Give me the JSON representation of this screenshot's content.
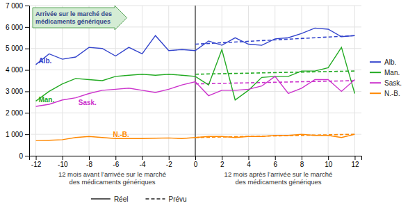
{
  "chart_data": {
    "type": "line",
    "x": [
      -12,
      -11,
      -10,
      -9,
      -8,
      -7,
      -6,
      -5,
      -4,
      -3,
      -2,
      -1,
      0,
      1,
      2,
      3,
      4,
      5,
      6,
      7,
      8,
      9,
      10,
      11,
      12
    ],
    "xlim": [
      -12.5,
      12.5
    ],
    "xticks": [
      -12,
      -10,
      -8,
      -6,
      -4,
      -2,
      0,
      2,
      4,
      6,
      8,
      10,
      12
    ],
    "ylim": [
      0,
      7000
    ],
    "yticks": [
      0,
      {
        "value": 1000,
        "label": "1 000"
      },
      {
        "value": 2000,
        "label": "2 000"
      },
      {
        "value": 3000,
        "label": "3 000"
      },
      {
        "value": 4000,
        "label": "4 000"
      },
      {
        "value": 5000,
        "label": "5 000"
      },
      {
        "value": 6000,
        "label": "6 000"
      },
      {
        "value": 7000,
        "label": "7 000"
      }
    ],
    "grid": true,
    "series": [
      {
        "name": "Alb.",
        "color": "#3344CC",
        "line_style": "solid",
        "values": [
          4250,
          4750,
          4500,
          4600,
          5050,
          5000,
          4650,
          5050,
          4750,
          5600,
          4900,
          4950,
          4900,
          5350,
          5150,
          5500,
          5200,
          5150,
          5450,
          5500,
          5700,
          5950,
          5900,
          5550,
          5600
        ],
        "predicted": {
          "line_style": "dashed",
          "x": [
            0,
            12
          ],
          "values": [
            5200,
            5600
          ]
        }
      },
      {
        "name": "Man.",
        "color": "#22AA22",
        "line_style": "solid",
        "values": [
          2550,
          3000,
          3350,
          3600,
          3550,
          3500,
          3700,
          3750,
          3800,
          3750,
          3800,
          3750,
          3700,
          3300,
          4950,
          2600,
          3050,
          3650,
          3700,
          3700,
          3950,
          3950,
          4100,
          5050,
          2900
        ],
        "predicted": {
          "line_style": "dashed",
          "x": [
            0,
            12
          ],
          "values": [
            3800,
            3950
          ]
        }
      },
      {
        "name": "Sask.",
        "color": "#CC33CC",
        "line_style": "solid",
        "values": [
          2300,
          2400,
          2600,
          2700,
          2900,
          3050,
          3100,
          3150,
          3050,
          2950,
          3100,
          3300,
          3450,
          2800,
          3050,
          3050,
          3100,
          3250,
          3700,
          2900,
          3150,
          3550,
          3550,
          3000,
          3550
        ],
        "predicted": {
          "line_style": "dashed",
          "x": [
            0,
            12
          ],
          "values": [
            3350,
            3500
          ]
        }
      },
      {
        "name": "N.-B.",
        "color": "#FF8800",
        "line_style": "solid",
        "values": [
          700,
          720,
          750,
          850,
          900,
          850,
          800,
          800,
          800,
          820,
          830,
          800,
          850,
          900,
          900,
          850,
          900,
          900,
          950,
          950,
          1000,
          950,
          950,
          850,
          1000
        ],
        "predicted": {
          "line_style": "dashed",
          "x": [
            0,
            12
          ],
          "values": [
            850,
            1000
          ]
        }
      }
    ],
    "event_x": 0,
    "arrow_annotation": "Arrivée sur le marché des\nmédicaments génériques",
    "period_labels": [
      "12 mois avant l’arrivée sur le marché\ndes médicaments génériques",
      "12 mois après l’arrivée sur le marché\ndes médicaments génériques"
    ],
    "annotations": [
      {
        "text": "Alb.",
        "x": -11.8,
        "y": 4300
      },
      {
        "text": "Man.",
        "x": -11.8,
        "y": 2500
      },
      {
        "text": "Sask.",
        "x": -8.8,
        "y": 2380
      },
      {
        "text": "N.-B.",
        "x": -6.2,
        "y": 890
      }
    ],
    "style_legend": [
      {
        "label": "Réel",
        "line_style": "solid"
      },
      {
        "label": "Prévu",
        "line_style": "dashed"
      }
    ]
  }
}
